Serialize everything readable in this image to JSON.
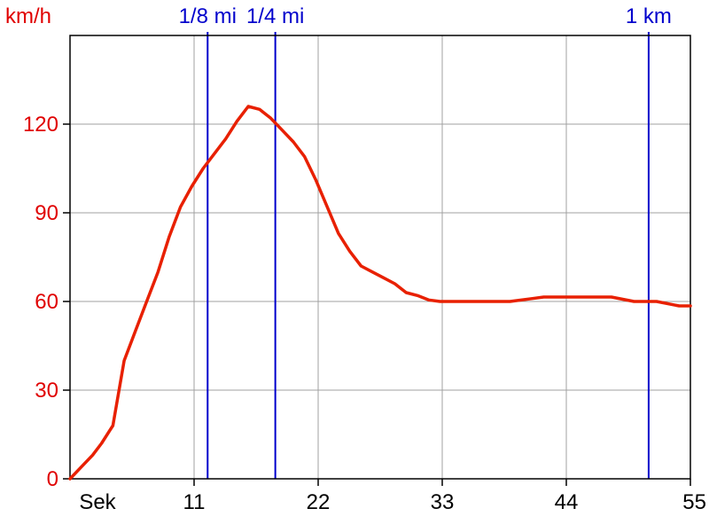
{
  "chart_data": {
    "type": "line",
    "title": "",
    "xlabel": "Sek",
    "ylabel": "km/h",
    "xlim": [
      0,
      55
    ],
    "ylim": [
      0,
      150
    ],
    "x_ticks": [
      11,
      22,
      33,
      44,
      55
    ],
    "y_ticks": [
      0,
      30,
      60,
      90,
      120
    ],
    "grid": true,
    "legend": "none",
    "colors": {
      "series": "#e82000",
      "markers": "#0000cc",
      "grid": "#a0a0a0",
      "axis": "#000000",
      "y_text": "#e00000"
    },
    "markers": [
      {
        "label": "1/8 mi",
        "x": 12.2
      },
      {
        "label": "1/4 mi",
        "x": 18.2
      },
      {
        "label": "1 km",
        "x": 51.3
      }
    ],
    "series": [
      {
        "x": [
          0,
          1,
          2,
          2.8,
          3.8,
          4.8,
          5.8,
          6.8,
          7.8,
          8.8,
          9.8,
          10.8,
          11.8,
          12.8,
          13.8,
          14.8,
          15.8,
          16.8,
          17.8,
          18.8,
          19.8,
          20.8,
          21.8,
          22.8,
          23.8,
          24.8,
          25.8,
          26.8,
          27.8,
          28.8,
          29.8,
          30.8,
          31.8,
          32.8,
          33.8,
          35,
          37,
          39,
          41,
          42,
          44,
          46,
          48,
          50,
          52,
          54,
          55
        ],
        "y": [
          0,
          4,
          8,
          12,
          18,
          40,
          50,
          60,
          70,
          82,
          92,
          99,
          105,
          110,
          115,
          121,
          126,
          125,
          122,
          118,
          114,
          109,
          101,
          92,
          83,
          77,
          72,
          70,
          68,
          66,
          63,
          62,
          60.5,
          60,
          60,
          60,
          60,
          60,
          61,
          61.5,
          61.5,
          61.5,
          61.5,
          60,
          60,
          58.5,
          58.5
        ]
      }
    ]
  }
}
